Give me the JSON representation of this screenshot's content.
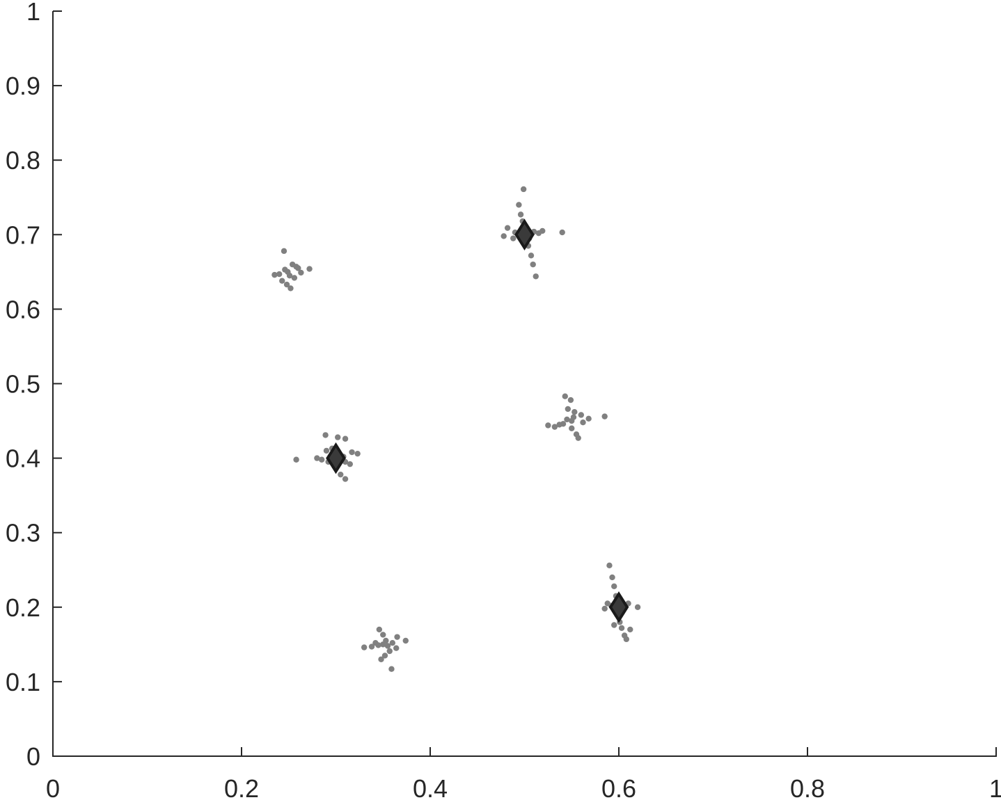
{
  "chart_data": {
    "type": "scatter",
    "title": "",
    "xlabel": "",
    "ylabel": "",
    "xlim": [
      0,
      1
    ],
    "ylim": [
      0,
      1
    ],
    "x_ticks": [
      "0",
      "0.2",
      "0.4",
      "0.6",
      "0.8",
      "1"
    ],
    "y_ticks": [
      "0",
      "0.1",
      "0.2",
      "0.3",
      "0.4",
      "0.5",
      "0.6",
      "0.7",
      "0.8",
      "0.9",
      "1"
    ],
    "grid": false,
    "legend": "none",
    "colors": {
      "points": "#808080",
      "markers_fill": "#3a3a3a",
      "markers_stroke": "#1a1a1a",
      "axis": "#262626"
    },
    "series": [
      {
        "marker": "dot",
        "points": [
          [
            0.249,
            0.65
          ],
          [
            0.245,
            0.678
          ],
          [
            0.252,
            0.628
          ],
          [
            0.24,
            0.647
          ],
          [
            0.26,
            0.655
          ],
          [
            0.272,
            0.654
          ],
          [
            0.256,
            0.642
          ],
          [
            0.243,
            0.638
          ],
          [
            0.254,
            0.66
          ],
          [
            0.235,
            0.646
          ],
          [
            0.263,
            0.649
          ],
          [
            0.248,
            0.633
          ],
          [
            0.258,
            0.657
          ],
          [
            0.246,
            0.653
          ],
          [
            0.251,
            0.645
          ],
          [
            0.499,
            0.761
          ],
          [
            0.494,
            0.74
          ],
          [
            0.496,
            0.727
          ],
          [
            0.498,
            0.718
          ],
          [
            0.5,
            0.71
          ],
          [
            0.5,
            0.7
          ],
          [
            0.488,
            0.695
          ],
          [
            0.478,
            0.698
          ],
          [
            0.482,
            0.709
          ],
          [
            0.51,
            0.704
          ],
          [
            0.519,
            0.705
          ],
          [
            0.515,
            0.702
          ],
          [
            0.54,
            0.703
          ],
          [
            0.504,
            0.685
          ],
          [
            0.507,
            0.672
          ],
          [
            0.509,
            0.66
          ],
          [
            0.512,
            0.644
          ],
          [
            0.49,
            0.703
          ],
          [
            0.505,
            0.695
          ],
          [
            0.495,
            0.7
          ],
          [
            0.3,
            0.4
          ],
          [
            0.289,
            0.431
          ],
          [
            0.302,
            0.428
          ],
          [
            0.31,
            0.426
          ],
          [
            0.258,
            0.398
          ],
          [
            0.28,
            0.4
          ],
          [
            0.292,
            0.395
          ],
          [
            0.31,
            0.395
          ],
          [
            0.317,
            0.408
          ],
          [
            0.323,
            0.406
          ],
          [
            0.315,
            0.392
          ],
          [
            0.305,
            0.378
          ],
          [
            0.31,
            0.372
          ],
          [
            0.29,
            0.41
          ],
          [
            0.296,
            0.413
          ],
          [
            0.308,
            0.402
          ],
          [
            0.285,
            0.398
          ],
          [
            0.3,
            0.392
          ],
          [
            0.55,
            0.45
          ],
          [
            0.543,
            0.483
          ],
          [
            0.549,
            0.478
          ],
          [
            0.546,
            0.466
          ],
          [
            0.553,
            0.462
          ],
          [
            0.56,
            0.458
          ],
          [
            0.568,
            0.453
          ],
          [
            0.585,
            0.456
          ],
          [
            0.525,
            0.444
          ],
          [
            0.532,
            0.442
          ],
          [
            0.541,
            0.446
          ],
          [
            0.55,
            0.44
          ],
          [
            0.555,
            0.432
          ],
          [
            0.557,
            0.427
          ],
          [
            0.545,
            0.452
          ],
          [
            0.537,
            0.445
          ],
          [
            0.562,
            0.448
          ],
          [
            0.552,
            0.455
          ],
          [
            0.6,
            0.2
          ],
          [
            0.59,
            0.256
          ],
          [
            0.593,
            0.24
          ],
          [
            0.595,
            0.228
          ],
          [
            0.597,
            0.215
          ],
          [
            0.588,
            0.205
          ],
          [
            0.585,
            0.198
          ],
          [
            0.598,
            0.19
          ],
          [
            0.601,
            0.18
          ],
          [
            0.603,
            0.172
          ],
          [
            0.606,
            0.162
          ],
          [
            0.608,
            0.157
          ],
          [
            0.612,
            0.17
          ],
          [
            0.62,
            0.2
          ],
          [
            0.61,
            0.205
          ],
          [
            0.595,
            0.176
          ],
          [
            0.592,
            0.202
          ],
          [
            0.604,
            0.195
          ],
          [
            0.35,
            0.15
          ],
          [
            0.346,
            0.17
          ],
          [
            0.35,
            0.163
          ],
          [
            0.353,
            0.155
          ],
          [
            0.33,
            0.146
          ],
          [
            0.338,
            0.147
          ],
          [
            0.345,
            0.149
          ],
          [
            0.36,
            0.152
          ],
          [
            0.365,
            0.16
          ],
          [
            0.374,
            0.155
          ],
          [
            0.364,
            0.145
          ],
          [
            0.357,
            0.141
          ],
          [
            0.352,
            0.135
          ],
          [
            0.348,
            0.13
          ],
          [
            0.359,
            0.117
          ],
          [
            0.342,
            0.152
          ],
          [
            0.355,
            0.148
          ]
        ]
      },
      {
        "marker": "diamond",
        "points": [
          [
            0.5,
            0.7
          ],
          [
            0.3,
            0.4
          ],
          [
            0.6,
            0.2
          ]
        ]
      }
    ]
  }
}
